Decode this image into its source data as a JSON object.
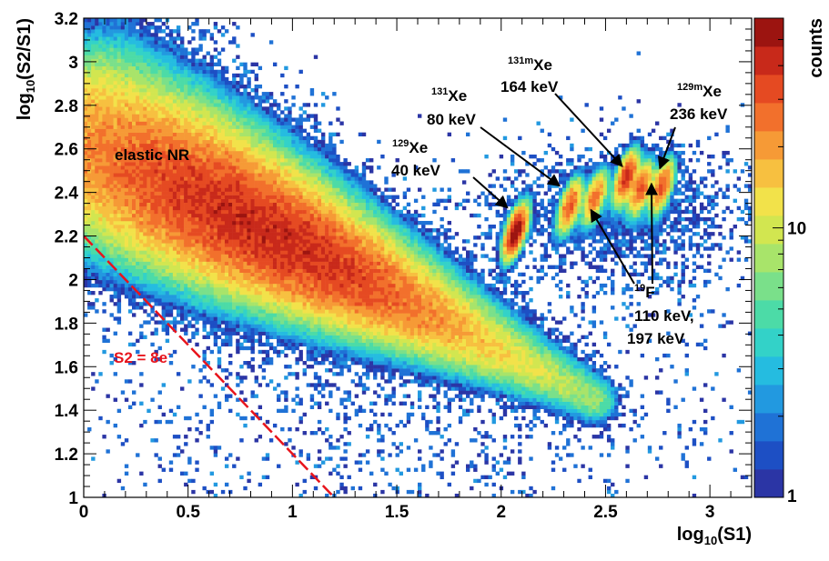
{
  "chart_data": {
    "type": "heatmap",
    "xlabel": "log10(S1)",
    "ylabel": "log10(S2/S1)",
    "xlim": [
      0,
      3.2
    ],
    "ylim": [
      1,
      3.2
    ],
    "x_ticks": [
      "0",
      "0.5",
      "1",
      "1.5",
      "2",
      "2.5",
      "3"
    ],
    "y_ticks": [
      "1",
      "1.2",
      "1.4",
      "1.6",
      "1.8",
      "2",
      "2.2",
      "2.4",
      "2.6",
      "2.8",
      "3",
      "3.2"
    ],
    "colorbar": {
      "label": "counts",
      "scale": "log",
      "range": [
        1,
        60
      ],
      "tick_labels": [
        "1",
        "10"
      ],
      "colors": [
        "#2b35a5",
        "#1d4fc4",
        "#1f72d6",
        "#2299e0",
        "#25bce0",
        "#33d2c8",
        "#4cdba7",
        "#7ae08a",
        "#a8e46a",
        "#d2e650",
        "#f2e24a",
        "#f7c040",
        "#f69a36",
        "#f2702c",
        "#e54a22",
        "#c8291a",
        "#9c1410"
      ]
    },
    "regions": [
      {
        "name": "elastic NR",
        "type": "band",
        "x_start": 0.0,
        "y_start": 2.65,
        "x_end": 2.45,
        "y_end": 1.45,
        "width": 0.5,
        "peak_x": 0.85,
        "peak_counts": 40
      },
      {
        "name": "129Xe 40 keV",
        "type": "blob",
        "center": [
          2.07,
          2.22
        ],
        "peak_counts": 55
      },
      {
        "name": "131Xe 80 keV",
        "type": "blob",
        "center": [
          2.33,
          2.34
        ],
        "peak_counts": 30
      },
      {
        "name": "19F 110 keV",
        "type": "blob",
        "center": [
          2.45,
          2.38
        ],
        "peak_counts": 25
      },
      {
        "name": "131mXe 164 keV",
        "type": "blob",
        "center": [
          2.6,
          2.47
        ],
        "peak_counts": 40
      },
      {
        "name": "19F 197 keV",
        "type": "blob",
        "center": [
          2.67,
          2.42
        ],
        "peak_counts": 30
      },
      {
        "name": "129mXe 236 keV",
        "type": "blob",
        "center": [
          2.77,
          2.43
        ],
        "peak_counts": 30
      }
    ],
    "threshold_line": {
      "label": "S2 = 8e",
      "label_sup": "-",
      "color": "#e8141c",
      "style": "dashed",
      "points": [
        [
          0,
          2.2
        ],
        [
          1.2,
          1.0
        ]
      ]
    },
    "annotations": [
      {
        "id": "nr",
        "text": "elastic NR"
      },
      {
        "id": "xe129",
        "sup": "129",
        "text": "Xe",
        "line2": "40 keV",
        "arrow_to": [
          2.03,
          2.33
        ]
      },
      {
        "id": "xe131",
        "sup": "131",
        "text": "Xe",
        "line2": "80 keV",
        "arrow_to": [
          2.28,
          2.43
        ]
      },
      {
        "id": "xe131m",
        "sup": "131m",
        "text": "Xe",
        "line2": "164 keV",
        "arrow_to": [
          2.58,
          2.52
        ]
      },
      {
        "id": "xe129m",
        "sup": "129m",
        "text": "Xe",
        "line2": "236 keV",
        "arrow_to": [
          2.76,
          2.51
        ]
      },
      {
        "id": "f19",
        "sup": "19",
        "text": "F",
        "line2": "110 keV,",
        "line3": "197 keV",
        "arrow_to": [
          [
            2.43,
            2.32
          ],
          [
            2.72,
            2.44
          ]
        ]
      }
    ]
  }
}
